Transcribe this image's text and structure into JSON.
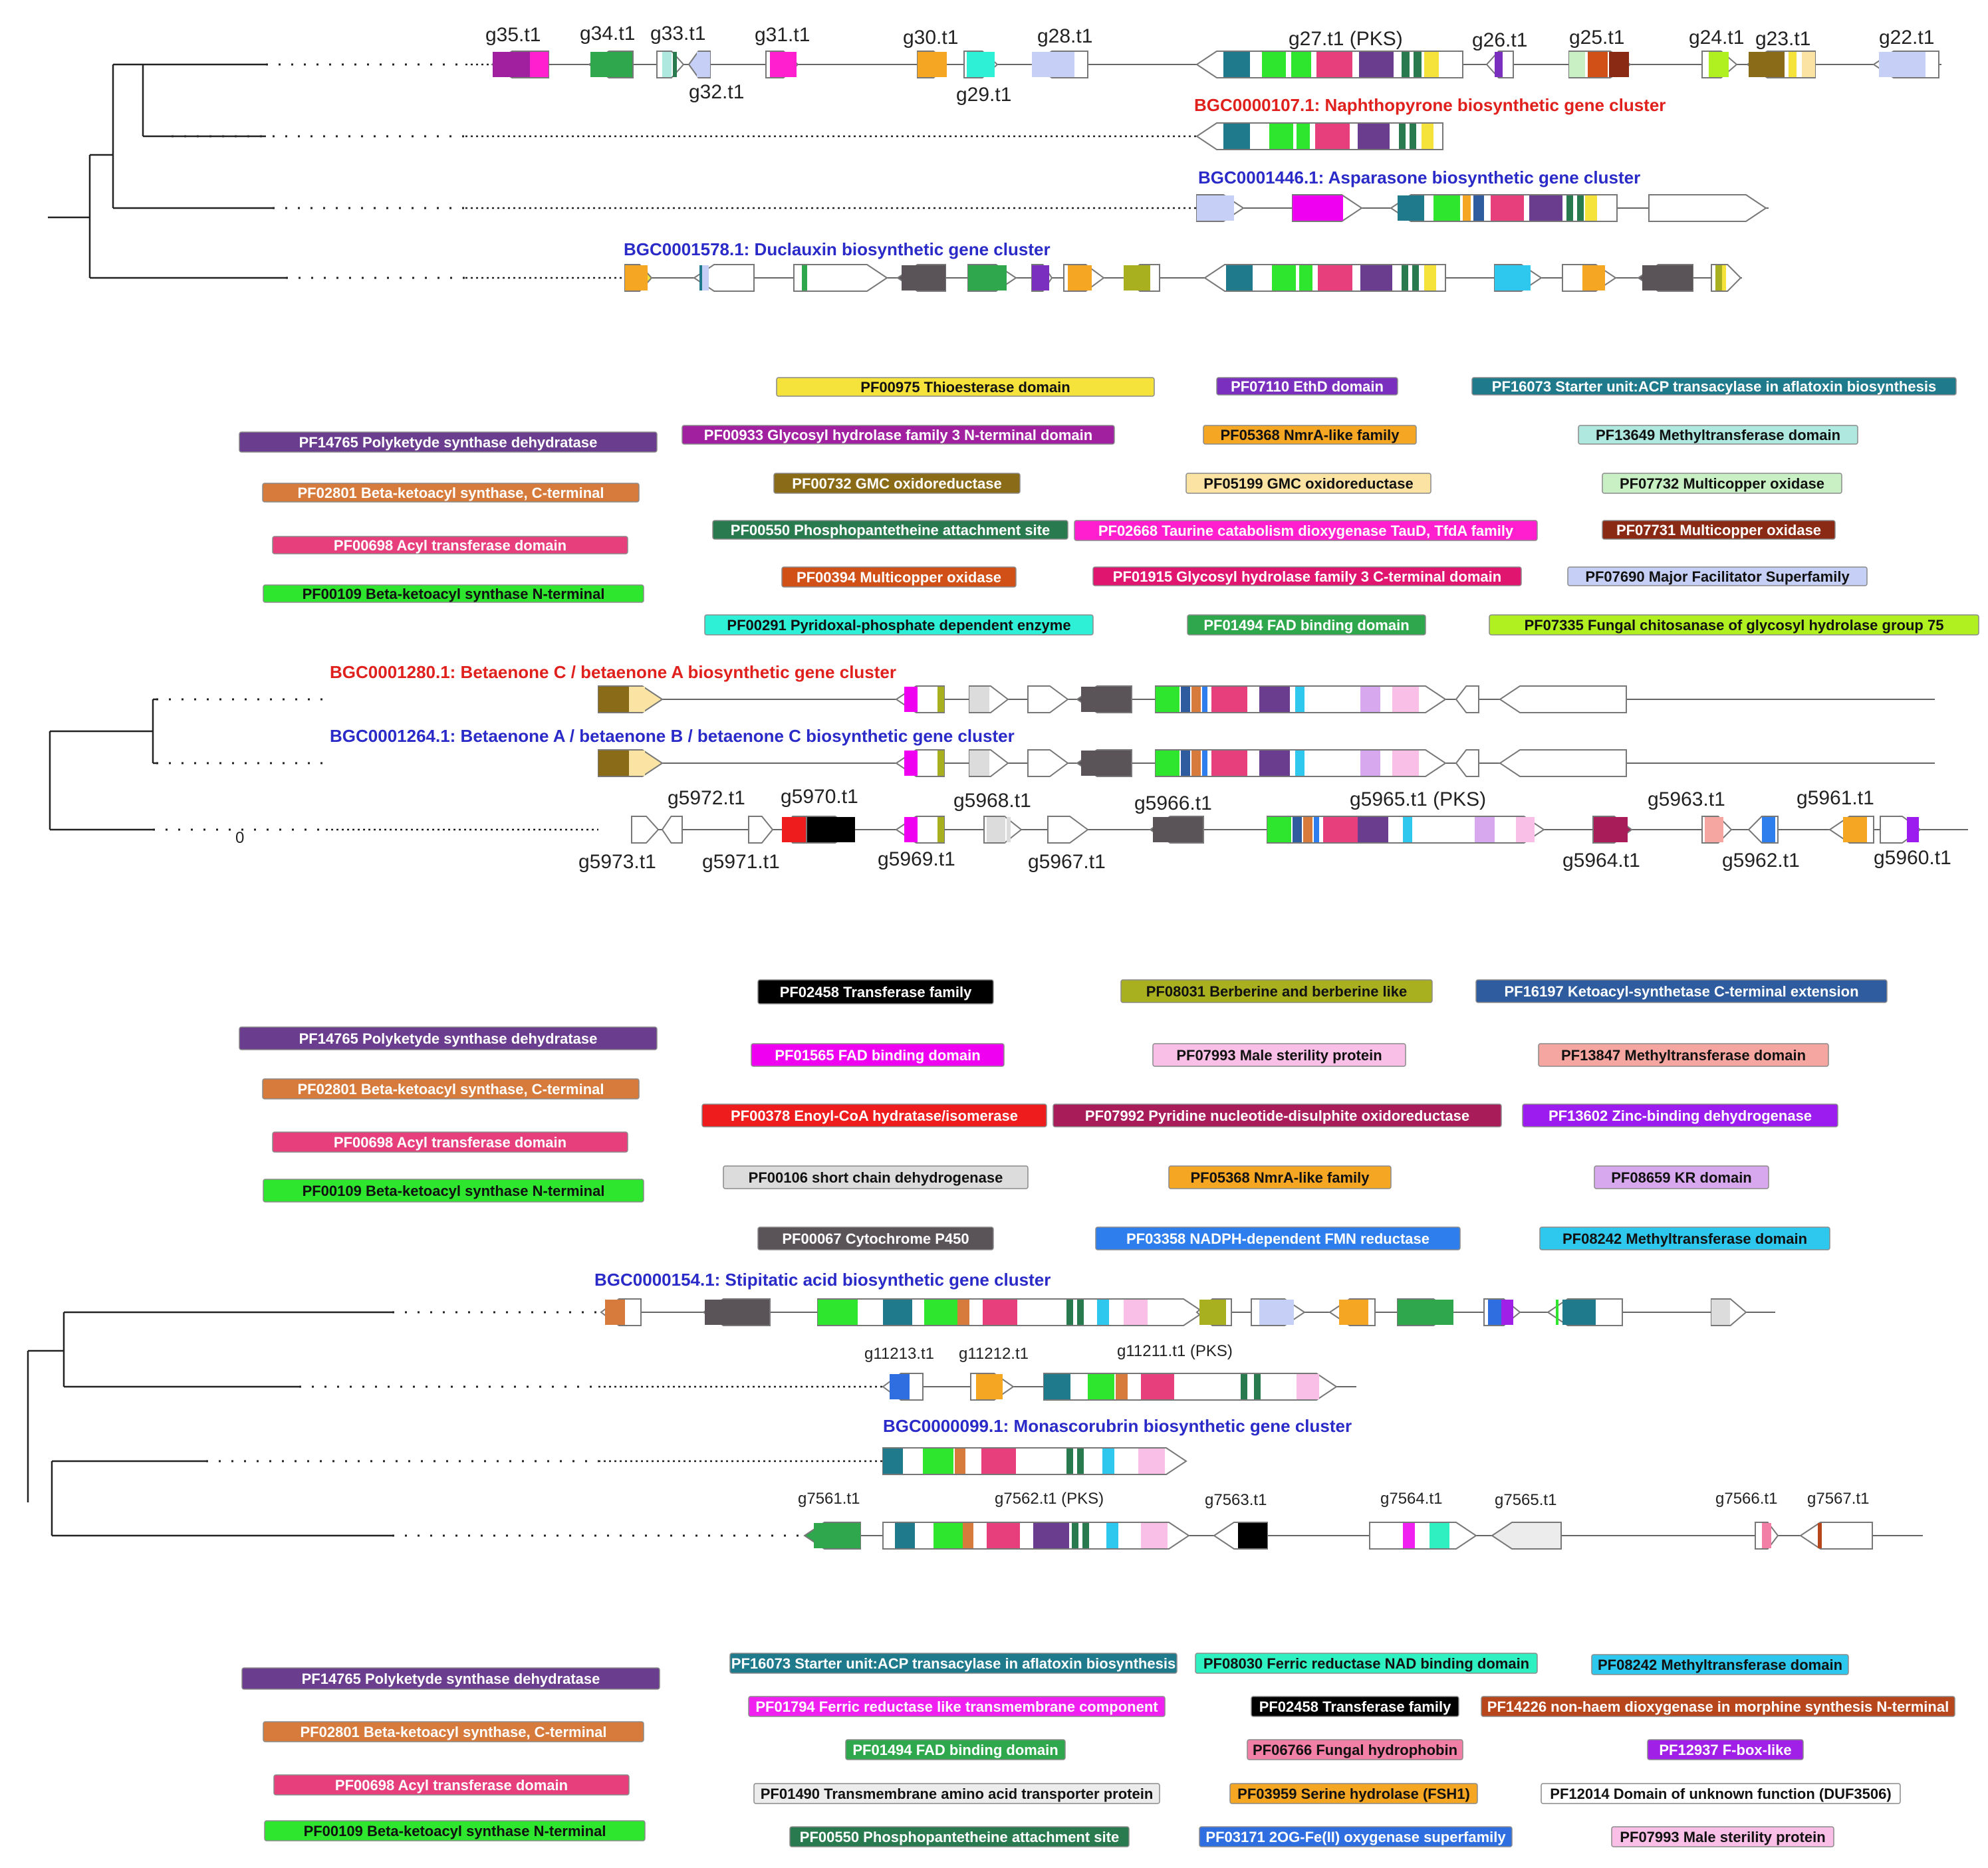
{
  "colors": {
    "PF00975": "#f5e23a",
    "PF07110": "#7b2fbf",
    "PF16073": "#1f7a8c",
    "PF14765": "#6a3d8f",
    "PF00933": "#a020a0",
    "PF05368": "#f5a623",
    "PF13649": "#aee8df",
    "PF02801": "#d77b3c",
    "PF00732": "#8a6c18",
    "PF05199": "#fbe3a3",
    "PF07732": "#c9f0c4",
    "PF00550": "#2a7a50",
    "PF02668": "#ff1fcf",
    "PF07731": "#8b2a14",
    "PF00698": "#e63f7c",
    "PF00394": "#d05018",
    "PF01915": "#e0156f",
    "PF07690": "#c6cff5",
    "PF00109": "#2ee62e",
    "PF00291": "#2ef0d6",
    "PF01494": "#2fa84d",
    "PF07335": "#b0f020",
    "PF02458": "#000000",
    "PF08031": "#a8b020",
    "PF16197": "#2e5c9e",
    "PF01565": "#f000f0",
    "PF07993": "#f9bfe6",
    "PF13847": "#f5a6a0",
    "PF00378": "#ee1c1c",
    "PF07992": "#a81c5a",
    "PF13602": "#9c1cf0",
    "PF00106": "#dcdcdc",
    "PF08659": "#d8a8ee",
    "PF00067": "#5a5458",
    "PF03358": "#2e7eee",
    "PF08242": "#2ec8ee",
    "PF08030": "#2ef0c0",
    "PF01794": "#f020f0",
    "PF14226": "#b8461c",
    "PF06766": "#f27fa6",
    "PF12937": "#a020e8",
    "PF01490": "#ececec",
    "PF03959": "#f5a623",
    "PF12014": "#ffffff",
    "PF03171": "#2e6ee0",
    "red": "#e0201c",
    "blue": "#2a2ac8"
  },
  "panel1": {
    "genes": [
      "g35.t1",
      "g34.t1",
      "g33.t1",
      "g32.t1",
      "g31.t1",
      "g30.t1",
      "g29.t1",
      "g28.t1",
      "g27.t1 (PKS)",
      "g26.t1",
      "g25.t1",
      "g24.t1",
      "g23.t1",
      "g22.t1"
    ],
    "clusters": [
      "BGC0000107.1: Naphthopyrone biosynthetic gene cluster",
      "BGC0001446.1: Asparasone biosynthetic gene cluster",
      "BGC0001578.1: Duclauxin biosynthetic gene cluster"
    ],
    "legend": [
      {
        "t": "PF00975 Thioesterase domain",
        "c": "PF00975"
      },
      {
        "t": "PF07110 EthD domain",
        "c": "PF07110"
      },
      {
        "t": "PF16073 Starter unit:ACP transacylase in aflatoxin biosynthesis",
        "c": "PF16073"
      },
      {
        "t": "PF14765 Polyketyde synthase dehydratase",
        "c": "PF14765"
      },
      {
        "t": "PF00933 Glycosyl hydrolase family 3  N-terminal domain",
        "c": "PF00933"
      },
      {
        "t": "PF05368 NmrA-like family",
        "c": "PF05368"
      },
      {
        "t": "PF13649 Methyltransferase domain",
        "c": "PF13649"
      },
      {
        "t": "PF02801 Beta-ketoacyl synthase, C-terminal",
        "c": "PF02801"
      },
      {
        "t": "PF00732 GMC oxidoreductase",
        "c": "PF00732"
      },
      {
        "t": "PF05199 GMC oxidoreductase",
        "c": "PF05199"
      },
      {
        "t": "PF07732 Multicopper oxidase",
        "c": "PF07732"
      },
      {
        "t": "PF00550 Phosphopantetheine attachment site",
        "c": "PF00550"
      },
      {
        "t": "PF02668 Taurine catabolism dioxygenase TauD, TfdA family",
        "c": "PF02668"
      },
      {
        "t": "PF07731 Multicopper oxidase",
        "c": "PF07731"
      },
      {
        "t": "PF00698 Acyl transferase domain",
        "c": "PF00698"
      },
      {
        "t": "PF00394 Multicopper oxidase",
        "c": "PF00394"
      },
      {
        "t": "PF01915 Glycosyl hydrolase family 3 C-terminal domain",
        "c": "PF01915"
      },
      {
        "t": "PF07690 Major Facilitator Superfamily",
        "c": "PF07690"
      },
      {
        "t": "PF00109 Beta-ketoacyl synthase N-terminal",
        "c": "PF00109"
      },
      {
        "t": "PF00291 Pyridoxal-phosphate dependent enzyme",
        "c": "PF00291"
      },
      {
        "t": "PF01494 FAD binding domain",
        "c": "PF01494"
      },
      {
        "t": "PF07335 Fungal chitosanase of glycosyl hydrolase group 75",
        "c": "PF07335"
      }
    ]
  },
  "panel2": {
    "clusters": [
      "BGC0001280.1: Betaenone C / betaenone A biosynthetic gene cluster",
      "BGC0001264.1: Betaenone A / betaenone B / betaenone C biosynthetic gene cluster"
    ],
    "scale_label": "0",
    "genes": [
      "g5972.t1",
      "g5970.t1",
      "g5968.t1",
      "g5966.t1",
      "g5965.t1 (PKS)",
      "g5963.t1",
      "g5961.t1",
      "g5973.t1",
      "g5971.t1",
      "g5969.t1",
      "g5967.t1",
      "g5964.t1",
      "g5962.t1",
      "g5960.t1"
    ],
    "legend": [
      {
        "t": "PF02458 Transferase family",
        "c": "PF02458"
      },
      {
        "t": "PF08031 Berberine and berberine like",
        "c": "PF08031"
      },
      {
        "t": "PF16197 Ketoacyl-synthetase C-terminal extension",
        "c": "PF16197"
      },
      {
        "t": "PF14765 Polyketyde synthase dehydratase",
        "c": "PF14765"
      },
      {
        "t": "PF01565 FAD binding domain",
        "c": "PF01565"
      },
      {
        "t": "PF07993 Male sterility protein",
        "c": "PF07993"
      },
      {
        "t": "PF13847 Methyltransferase domain",
        "c": "PF13847"
      },
      {
        "t": "PF02801 Beta-ketoacyl synthase, C-terminal",
        "c": "PF02801"
      },
      {
        "t": "PF00378 Enoyl-CoA hydratase/isomerase",
        "c": "PF00378"
      },
      {
        "t": "PF07992 Pyridine nucleotide-disulphite oxidoreductase",
        "c": "PF07992"
      },
      {
        "t": "PF13602 Zinc-binding dehydrogenase",
        "c": "PF13602"
      },
      {
        "t": "PF00698 Acyl transferase domain",
        "c": "PF00698"
      },
      {
        "t": "PF00106 short chain dehydrogenase",
        "c": "PF00106"
      },
      {
        "t": "PF05368 NmrA-like family",
        "c": "PF05368"
      },
      {
        "t": "PF08659 KR domain",
        "c": "PF08659"
      },
      {
        "t": "PF00109 Beta-ketoacyl synthase N-terminal",
        "c": "PF00109"
      },
      {
        "t": "PF00067 Cytochrome P450",
        "c": "PF00067"
      },
      {
        "t": "PF03358 NADPH-dependent FMN reductase",
        "c": "PF03358"
      },
      {
        "t": "PF08242 Methyltransferase domain",
        "c": "PF08242"
      }
    ]
  },
  "panel3": {
    "clusters": [
      "BGC0000154.1: Stipitatic acid biosynthetic gene cluster",
      "BGC0000099.1: Monascorubrin biosynthetic gene cluster"
    ],
    "genes": [
      "g11213.t1",
      "g11212.t1",
      "g11211.t1 (PKS)",
      "g7561.t1",
      "g7562.t1 (PKS)",
      "g7563.t1",
      "g7564.t1",
      "g7565.t1",
      "g7566.t1",
      "g7567.t1"
    ],
    "legend": [
      {
        "t": "PF14765 Polyketyde synthase dehydratase",
        "c": "PF14765"
      },
      {
        "t": "PF16073 Starter unit:ACP transacylase in aflatoxin biosynthesis",
        "c": "PF16073"
      },
      {
        "t": "PF08030 Ferric reductase NAD binding domain",
        "c": "PF08030"
      },
      {
        "t": "PF08242 Methyltransferase domain",
        "c": "PF08242"
      },
      {
        "t": "PF01794 Ferric reductase like transmembrane component",
        "c": "PF01794"
      },
      {
        "t": "PF02458 Transferase family",
        "c": "PF02458"
      },
      {
        "t": "PF14226 non-haem dioxygenase in morphine synthesis N-terminal",
        "c": "PF14226"
      },
      {
        "t": "PF02801 Beta-ketoacyl synthase, C-terminal",
        "c": "PF02801"
      },
      {
        "t": "PF01494 FAD binding domain",
        "c": "PF01494"
      },
      {
        "t": "PF06766 Fungal hydrophobin",
        "c": "PF06766"
      },
      {
        "t": "PF12937 F-box-like",
        "c": "PF12937"
      },
      {
        "t": "PF00698 Acyl transferase domain",
        "c": "PF00698"
      },
      {
        "t": "PF01490 Transmembrane amino acid transporter protein",
        "c": "PF01490"
      },
      {
        "t": "PF03959 Serine hydrolase (FSH1)",
        "c": "PF03959"
      },
      {
        "t": "PF12014 Domain of unknown function (DUF3506)",
        "c": "PF12014"
      },
      {
        "t": "PF00109 Beta-ketoacyl synthase N-terminal",
        "c": "PF00109"
      },
      {
        "t": "PF00550 Phosphopantetheine attachment site",
        "c": "PF00550"
      },
      {
        "t": "PF03171 2OG-Fe(II) oxygenase superfamily",
        "c": "PF03171"
      },
      {
        "t": "PF07993 Male sterility protein",
        "c": "PF07993"
      }
    ]
  }
}
